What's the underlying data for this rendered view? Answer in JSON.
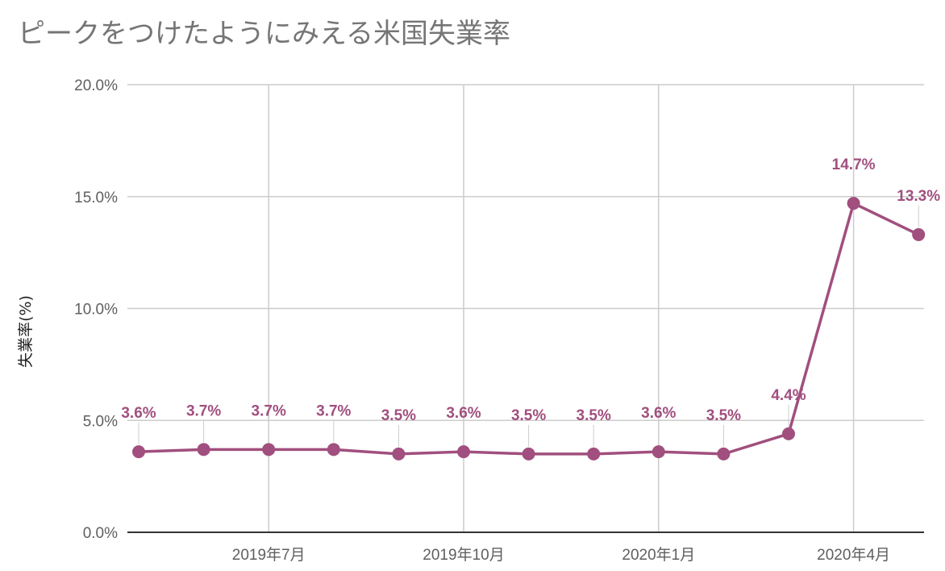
{
  "title": "ピークをつけたようにみえる米国失業率",
  "colors": {
    "series": "#a14f7e",
    "grid": "#cccccc",
    "axis": "#333333",
    "text": "#5f5f5f",
    "title": "#757575"
  },
  "chart_data": {
    "type": "line",
    "title": "ピークをつけたようにみえる米国失業率",
    "xlabel": "",
    "ylabel": "失業率(%)",
    "ylim": [
      0,
      20
    ],
    "grid": true,
    "x_tick_labels": [
      "2019年7月",
      "2019年10月",
      "2020年1月",
      "2020年4月"
    ],
    "y_tick_labels": [
      "0.0%",
      "5.0%",
      "10.0%",
      "15.0%",
      "20.0%"
    ],
    "x": [
      "2019-05",
      "2019-06",
      "2019-07",
      "2019-08",
      "2019-09",
      "2019-10",
      "2019-11",
      "2019-12",
      "2020-01",
      "2020-02",
      "2020-03",
      "2020-04",
      "2020-05"
    ],
    "series": [
      {
        "values": [
          3.6,
          3.7,
          3.7,
          3.7,
          3.5,
          3.6,
          3.5,
          3.5,
          3.6,
          3.5,
          4.4,
          14.7,
          13.3
        ],
        "data_labels": [
          "3.6%",
          "3.7%",
          "3.7%",
          "3.7%",
          "3.5%",
          "3.6%",
          "3.5%",
          "3.5%",
          "3.6%",
          "3.5%",
          "4.4%",
          "14.7%",
          "13.3%"
        ]
      }
    ]
  }
}
